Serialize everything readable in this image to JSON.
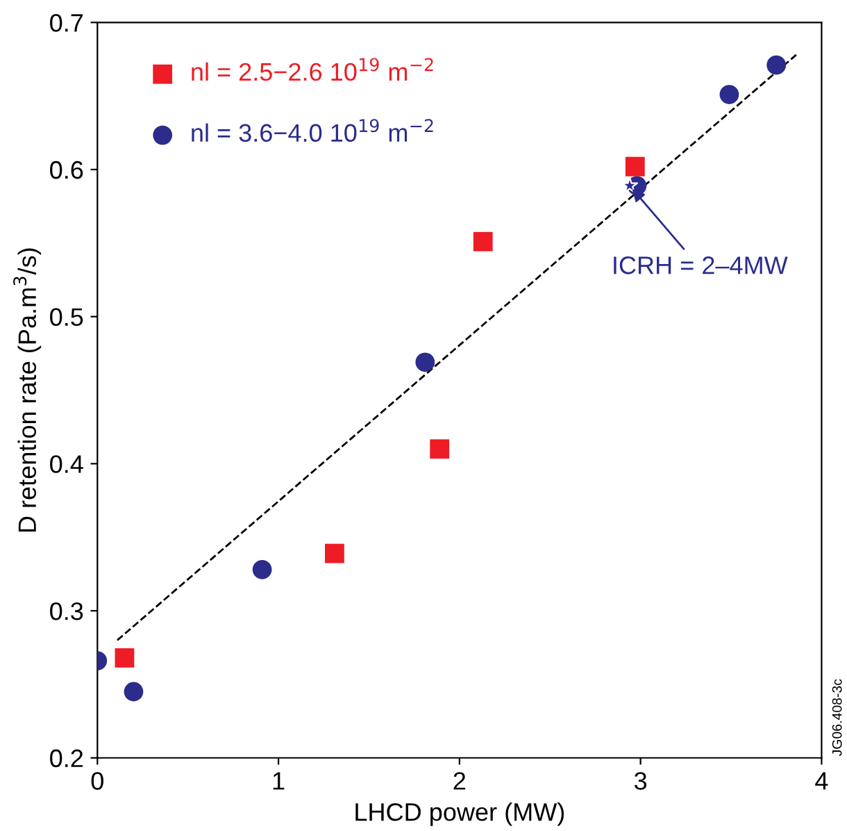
{
  "chart_data": {
    "type": "scatter",
    "xlabel": "LHCD power (MW)",
    "ylabel": "D retention rate (Pa.m$^{3}$/s)",
    "xlim": [
      0,
      4
    ],
    "xticks": [
      0,
      1,
      2,
      3,
      4
    ],
    "ylim": [
      0.2,
      0.7
    ],
    "yticks": [
      0.2,
      0.3,
      0.4,
      0.5,
      0.6,
      0.7
    ],
    "grid": false,
    "legend": "top left",
    "series": [
      {
        "name": "nl = 2.5−2.6 10$^{19}$ m$^{−2}$",
        "color": "#ee1c25",
        "marker": "square",
        "x": [
          0.15,
          1.31,
          1.89,
          2.13,
          2.97
        ],
        "values": [
          0.268,
          0.339,
          0.41,
          0.551,
          0.602
        ]
      },
      {
        "name": "nl = 3.6−4.0 10$^{19}$ m$^{−2}$",
        "color": "#2b2c8c",
        "marker": "circle",
        "x": [
          0,
          0.2,
          0.91,
          1.81,
          2.98,
          3.49,
          3.75
        ],
        "values": [
          0.266,
          0.245,
          0.328,
          0.469,
          0.589,
          0.651,
          0.671
        ]
      },
      {
        "color": "#2b2c8c",
        "marker": "star",
        "x": [
          2.94
        ],
        "values": [
          0.589
        ]
      },
      {
        "type": "line",
        "color": "#000000",
        "line_style": "dashed",
        "marker": "none",
        "x": [
          0.11,
          3.86
        ],
        "values": [
          0.28,
          0.678
        ]
      }
    ],
    "annotations": [
      {
        "text": "ICRH = 2–4MW",
        "x": 2.94,
        "y": 0.589
      },
      "JG06.408-3c"
    ]
  }
}
